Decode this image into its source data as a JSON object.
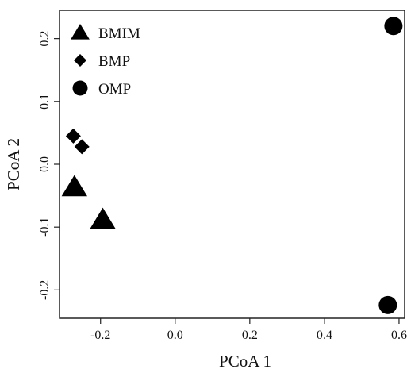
{
  "chart_data": {
    "type": "scatter",
    "xlabel": "PCoA 1",
    "ylabel": "PCoA 2",
    "xlim": [
      -0.31,
      0.615
    ],
    "ylim": [
      -0.245,
      0.245
    ],
    "xticks": [
      -0.2,
      0.0,
      0.2,
      0.4,
      0.6
    ],
    "yticks": [
      -0.2,
      -0.1,
      0.0,
      0.1,
      0.2
    ],
    "xtick_labels": [
      "-0.2",
      "0.0",
      "0.2",
      "0.4",
      "0.6"
    ],
    "ytick_labels": [
      "-0.2",
      "-0.1",
      "0.0",
      "0.1",
      "0.2"
    ],
    "legend_position": "top-left",
    "series": [
      {
        "name": "BMIM",
        "marker": "triangle",
        "color": "#000000",
        "points": [
          [
            -0.27,
            -0.036
          ],
          [
            -0.194,
            -0.088
          ]
        ]
      },
      {
        "name": "BMP",
        "marker": "diamond",
        "color": "#000000",
        "points": [
          [
            -0.273,
            0.045
          ],
          [
            -0.25,
            0.028
          ]
        ]
      },
      {
        "name": "OMP",
        "marker": "circle",
        "color": "#000000",
        "points": [
          [
            0.585,
            0.22
          ],
          [
            0.57,
            -0.224
          ]
        ]
      }
    ]
  }
}
